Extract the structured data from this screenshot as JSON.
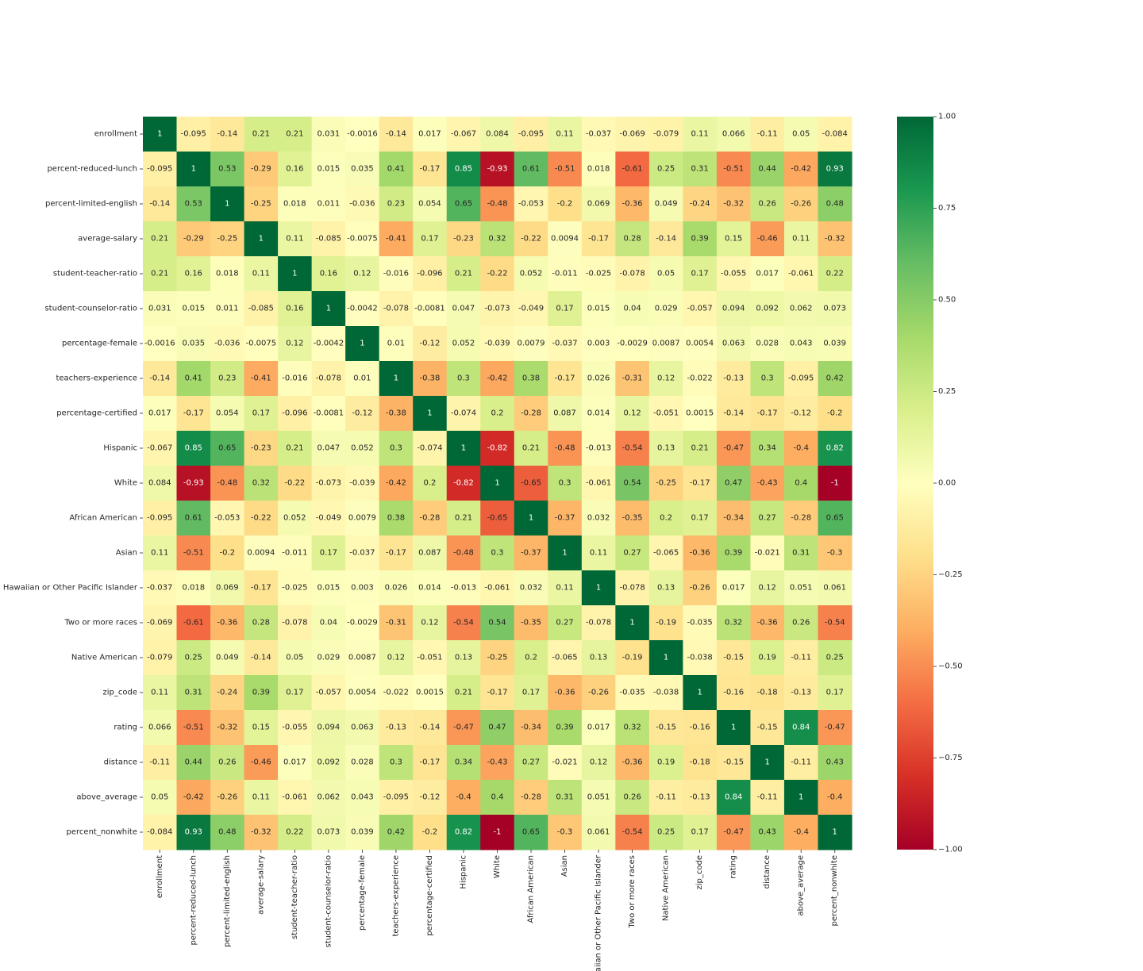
{
  "chart_data": {
    "type": "heatmap",
    "title": "",
    "xlabel": "",
    "ylabel": "",
    "labels": [
      "enrollment",
      "percent-reduced-lunch",
      "percent-limited-english",
      "average-salary",
      "student-teacher-ratio",
      "student-counselor-ratio",
      "percentage-female",
      "teachers-experience",
      "percentage-certified",
      "Hispanic",
      "White",
      "African American",
      "Asian",
      "Hawaiian or Other Pacific Islander",
      "Two or more races",
      "Native American",
      "zip_code",
      "rating",
      "distance",
      "above_average",
      "percent_nonwhite"
    ],
    "annotations": [
      [
        "1",
        "-0.095",
        "-0.14",
        "0.21",
        "0.21",
        "0.031",
        "-0.0016",
        "-0.14",
        "0.017",
        "-0.067",
        "0.084",
        "-0.095",
        "0.11",
        "-0.037",
        "-0.069",
        "-0.079",
        "0.11",
        "0.066",
        "-0.11",
        "0.05",
        "-0.084"
      ],
      [
        "-0.095",
        "1",
        "0.53",
        "-0.29",
        "0.16",
        "0.015",
        "0.035",
        "0.41",
        "-0.17",
        "0.85",
        "-0.93",
        "0.61",
        "-0.51",
        "0.018",
        "-0.61",
        "0.25",
        "0.31",
        "-0.51",
        "0.44",
        "-0.42",
        "0.93"
      ],
      [
        "-0.14",
        "0.53",
        "1",
        "-0.25",
        "0.018",
        "0.011",
        "-0.036",
        "0.23",
        "0.054",
        "0.65",
        "-0.48",
        "-0.053",
        "-0.2",
        "0.069",
        "-0.36",
        "0.049",
        "-0.24",
        "-0.32",
        "0.26",
        "-0.26",
        "0.48"
      ],
      [
        "0.21",
        "-0.29",
        "-0.25",
        "1",
        "0.11",
        "-0.085",
        "-0.0075",
        "-0.41",
        "0.17",
        "-0.23",
        "0.32",
        "-0.22",
        "0.0094",
        "-0.17",
        "0.28",
        "-0.14",
        "0.39",
        "0.15",
        "-0.46",
        "0.11",
        "-0.32"
      ],
      [
        "0.21",
        "0.16",
        "0.018",
        "0.11",
        "1",
        "0.16",
        "0.12",
        "-0.016",
        "-0.096",
        "0.21",
        "-0.22",
        "0.052",
        "-0.011",
        "-0.025",
        "-0.078",
        "0.05",
        "0.17",
        "-0.055",
        "0.017",
        "-0.061",
        "0.22"
      ],
      [
        "0.031",
        "0.015",
        "0.011",
        "-0.085",
        "0.16",
        "1",
        "-0.0042",
        "-0.078",
        "-0.0081",
        "0.047",
        "-0.073",
        "-0.049",
        "0.17",
        "0.015",
        "0.04",
        "0.029",
        "-0.057",
        "0.094",
        "0.092",
        "0.062",
        "0.073"
      ],
      [
        "-0.0016",
        "0.035",
        "-0.036",
        "-0.0075",
        "0.12",
        "-0.0042",
        "1",
        "0.01",
        "-0.12",
        "0.052",
        "-0.039",
        "0.0079",
        "-0.037",
        "0.003",
        "-0.0029",
        "0.0087",
        "0.0054",
        "0.063",
        "0.028",
        "0.043",
        "0.039"
      ],
      [
        "-0.14",
        "0.41",
        "0.23",
        "-0.41",
        "-0.016",
        "-0.078",
        "0.01",
        "1",
        "-0.38",
        "0.3",
        "-0.42",
        "0.38",
        "-0.17",
        "0.026",
        "-0.31",
        "0.12",
        "-0.022",
        "-0.13",
        "0.3",
        "-0.095",
        "0.42"
      ],
      [
        "0.017",
        "-0.17",
        "0.054",
        "0.17",
        "-0.096",
        "-0.0081",
        "-0.12",
        "-0.38",
        "1",
        "-0.074",
        "0.2",
        "-0.28",
        "0.087",
        "0.014",
        "0.12",
        "-0.051",
        "0.0015",
        "-0.14",
        "-0.17",
        "-0.12",
        "-0.2"
      ],
      [
        "-0.067",
        "0.85",
        "0.65",
        "-0.23",
        "0.21",
        "0.047",
        "0.052",
        "0.3",
        "-0.074",
        "1",
        "-0.82",
        "0.21",
        "-0.48",
        "-0.013",
        "-0.54",
        "0.13",
        "0.21",
        "-0.47",
        "0.34",
        "-0.4",
        "0.82"
      ],
      [
        "0.084",
        "-0.93",
        "-0.48",
        "0.32",
        "-0.22",
        "-0.073",
        "-0.039",
        "-0.42",
        "0.2",
        "-0.82",
        "1",
        "-0.65",
        "0.3",
        "-0.061",
        "0.54",
        "-0.25",
        "-0.17",
        "0.47",
        "-0.43",
        "0.4",
        "-1"
      ],
      [
        "-0.095",
        "0.61",
        "-0.053",
        "-0.22",
        "0.052",
        "-0.049",
        "0.0079",
        "0.38",
        "-0.28",
        "0.21",
        "-0.65",
        "1",
        "-0.37",
        "0.032",
        "-0.35",
        "0.2",
        "0.17",
        "-0.34",
        "0.27",
        "-0.28",
        "0.65"
      ],
      [
        "0.11",
        "-0.51",
        "-0.2",
        "0.0094",
        "-0.011",
        "0.17",
        "-0.037",
        "-0.17",
        "0.087",
        "-0.48",
        "0.3",
        "-0.37",
        "1",
        "0.11",
        "0.27",
        "-0.065",
        "-0.36",
        "0.39",
        "-0.021",
        "0.31",
        "-0.3"
      ],
      [
        "-0.037",
        "0.018",
        "0.069",
        "-0.17",
        "-0.025",
        "0.015",
        "0.003",
        "0.026",
        "0.014",
        "-0.013",
        "-0.061",
        "0.032",
        "0.11",
        "1",
        "-0.078",
        "0.13",
        "-0.26",
        "0.017",
        "0.12",
        "0.051",
        "0.061"
      ],
      [
        "-0.069",
        "-0.61",
        "-0.36",
        "0.28",
        "-0.078",
        "0.04",
        "-0.0029",
        "-0.31",
        "0.12",
        "-0.54",
        "0.54",
        "-0.35",
        "0.27",
        "-0.078",
        "1",
        "-0.19",
        "-0.035",
        "0.32",
        "-0.36",
        "0.26",
        "-0.54"
      ],
      [
        "-0.079",
        "0.25",
        "0.049",
        "-0.14",
        "0.05",
        "0.029",
        "0.0087",
        "0.12",
        "-0.051",
        "0.13",
        "-0.25",
        "0.2",
        "-0.065",
        "0.13",
        "-0.19",
        "1",
        "-0.038",
        "-0.15",
        "0.19",
        "-0.11",
        "0.25"
      ],
      [
        "0.11",
        "0.31",
        "-0.24",
        "0.39",
        "0.17",
        "-0.057",
        "0.0054",
        "-0.022",
        "0.0015",
        "0.21",
        "-0.17",
        "0.17",
        "-0.36",
        "-0.26",
        "-0.035",
        "-0.038",
        "1",
        "-0.16",
        "-0.18",
        "-0.13",
        "0.17"
      ],
      [
        "0.066",
        "-0.51",
        "-0.32",
        "0.15",
        "-0.055",
        "0.094",
        "0.063",
        "-0.13",
        "-0.14",
        "-0.47",
        "0.47",
        "-0.34",
        "0.39",
        "0.017",
        "0.32",
        "-0.15",
        "-0.16",
        "1",
        "-0.15",
        "0.84",
        "-0.47"
      ],
      [
        "-0.11",
        "0.44",
        "0.26",
        "-0.46",
        "0.017",
        "0.092",
        "0.028",
        "0.3",
        "-0.17",
        "0.34",
        "-0.43",
        "0.27",
        "-0.021",
        "0.12",
        "-0.36",
        "0.19",
        "-0.18",
        "-0.15",
        "1",
        "-0.11",
        "0.43"
      ],
      [
        "0.05",
        "-0.42",
        "-0.26",
        "0.11",
        "-0.061",
        "0.062",
        "0.043",
        "-0.095",
        "-0.12",
        "-0.4",
        "0.4",
        "-0.28",
        "0.31",
        "0.051",
        "0.26",
        "-0.11",
        "-0.13",
        "0.84",
        "-0.11",
        "1",
        "-0.4"
      ],
      [
        "-0.084",
        "0.93",
        "0.48",
        "-0.32",
        "0.22",
        "0.073",
        "0.039",
        "0.42",
        "-0.2",
        "0.82",
        "-1",
        "0.65",
        "-0.3",
        "0.061",
        "-0.54",
        "0.25",
        "0.17",
        "-0.47",
        "0.43",
        "-0.4",
        "1"
      ]
    ],
    "colormap": "RdYlGn",
    "vmin": -1,
    "vmax": 1,
    "colorbar_ticks": [
      "1.00",
      "0.75",
      "0.50",
      "0.25",
      "0.00",
      "−0.25",
      "−0.50",
      "−0.75",
      "−1.00"
    ],
    "colorbar_tick_values": [
      1,
      0.75,
      0.5,
      0.25,
      0,
      -0.25,
      -0.5,
      -0.75,
      -1
    ]
  }
}
